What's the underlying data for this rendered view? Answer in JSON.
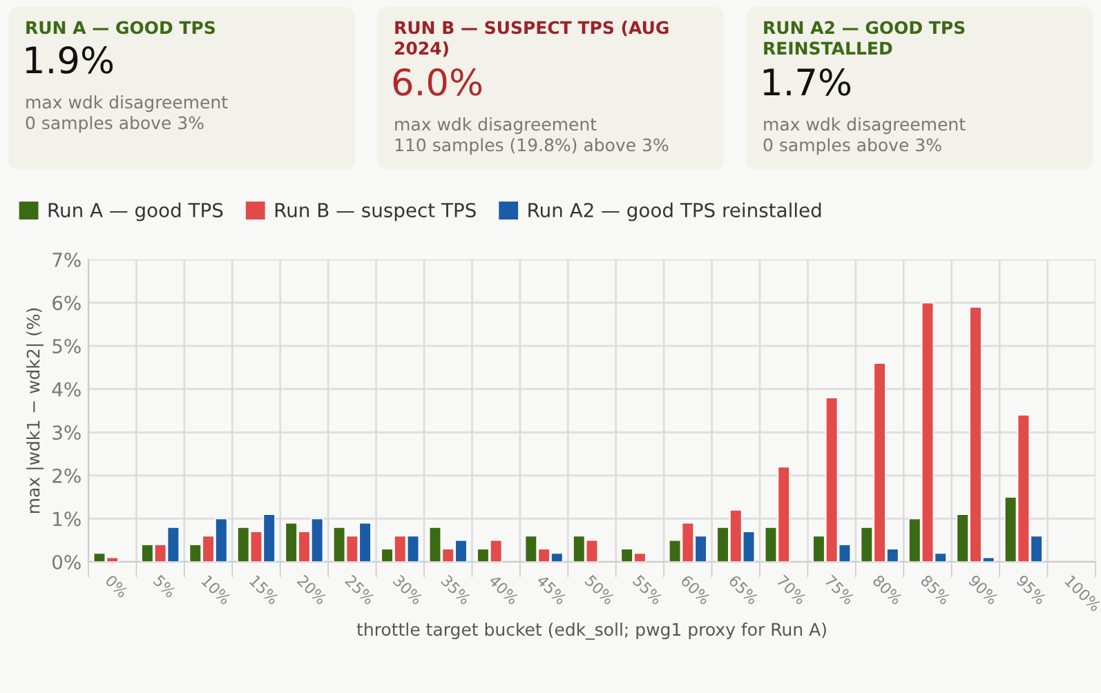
{
  "chart_data": [
    {
      "type": "other",
      "title": "RUN A — GOOD TPS",
      "subtitle": "1.9%",
      "colors": [
        "#3b6a14",
        "#111111"
      ],
      "annotations": [
        "max wdk disagreement",
        "0 samples above 3%"
      ]
    },
    {
      "type": "other",
      "title": "RUN B — SUSPECT TPS (AUG 2024)",
      "subtitle": "6.0%",
      "colors": [
        "#9b2226",
        "#b22a2a"
      ],
      "annotations": [
        "max wdk disagreement",
        "110 samples (19.8%) above 3%"
      ]
    },
    {
      "type": "other",
      "title": "RUN A2 — GOOD TPS REINSTALLED",
      "subtitle": "1.7%",
      "colors": [
        "#3b6a14",
        "#111111"
      ],
      "annotations": [
        "max wdk disagreement",
        "0 samples above 3%"
      ]
    },
    {
      "type": "bar",
      "xlabel": "throttle target bucket (edk_soll; pwg1 proxy for Run A)",
      "ylabel": "max |wdk1 − wdk2| (%)",
      "categories": [
        "0%",
        "5%",
        "10%",
        "15%",
        "20%",
        "25%",
        "30%",
        "35%",
        "40%",
        "45%",
        "50%",
        "55%",
        "60%",
        "65%",
        "70%",
        "75%",
        "80%",
        "85%",
        "90%",
        "95%",
        "100%"
      ],
      "series": [
        {
          "name": "Run A — good TPS",
          "color": "#3b6a14",
          "values": [
            0.2,
            0.4,
            0.4,
            0.8,
            0.9,
            0.8,
            0.3,
            0.8,
            0.3,
            0.6,
            0.6,
            0.3,
            0.5,
            0.8,
            0.8,
            0.6,
            0.8,
            1.0,
            1.1,
            1.5,
            null
          ]
        },
        {
          "name": "Run B — suspect TPS",
          "color": "#e34a4a",
          "values": [
            0.1,
            0.4,
            0.6,
            0.7,
            0.7,
            0.6,
            0.6,
            0.3,
            0.5,
            0.3,
            0.5,
            0.2,
            0.9,
            1.2,
            2.2,
            3.8,
            4.6,
            6.0,
            5.9,
            3.4,
            null
          ]
        },
        {
          "name": "Run A2 — good TPS reinstalled",
          "color": "#1a5ca6",
          "values": [
            null,
            0.8,
            1.0,
            1.1,
            1.0,
            0.9,
            0.6,
            0.5,
            null,
            0.2,
            null,
            null,
            0.6,
            0.7,
            null,
            0.4,
            0.3,
            0.2,
            0.1,
            0.6,
            null
          ]
        }
      ],
      "ylim": [
        0,
        7
      ],
      "yticks": [
        {
          "value": 0,
          "label": "0%"
        },
        {
          "value": 1,
          "label": "1%"
        },
        {
          "value": 2,
          "label": "2%"
        },
        {
          "value": 3,
          "label": "3%"
        },
        {
          "value": 4,
          "label": "4%"
        },
        {
          "value": 5,
          "label": "5%"
        },
        {
          "value": 6,
          "label": "6%"
        },
        {
          "value": 7,
          "label": "7%"
        }
      ],
      "grid": true,
      "legend": "top left"
    }
  ]
}
